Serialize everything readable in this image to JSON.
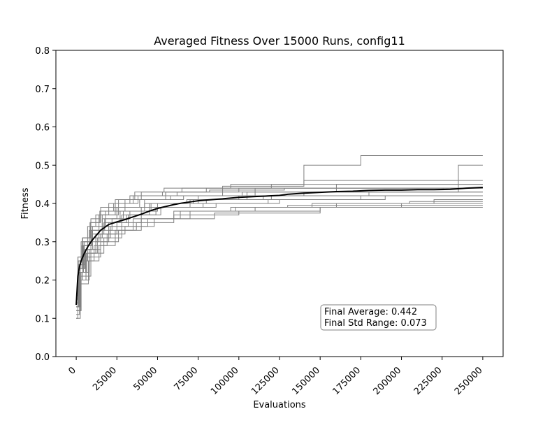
{
  "chart_data": {
    "type": "line",
    "title": "Averaged Fitness Over 15000 Runs, config11",
    "xlabel": "Evaluations",
    "ylabel": "Fitness",
    "xlim": [
      -12500,
      262500
    ],
    "ylim": [
      0.0,
      0.8
    ],
    "xticks": [
      0,
      25000,
      50000,
      75000,
      100000,
      125000,
      150000,
      175000,
      200000,
      225000,
      250000
    ],
    "xtick_labels": [
      "0",
      "25000",
      "50000",
      "75000",
      "100000",
      "125000",
      "150000",
      "175000",
      "200000",
      "225000",
      "250000"
    ],
    "yticks": [
      0.0,
      0.1,
      0.2,
      0.3,
      0.4,
      0.5,
      0.6,
      0.7,
      0.8
    ],
    "ytick_labels": [
      "0.0",
      "0.1",
      "0.2",
      "0.3",
      "0.4",
      "0.5",
      "0.6",
      "0.7",
      "0.8"
    ],
    "grid": false,
    "series": [
      {
        "role": "average",
        "color": "#000000",
        "x": [
          0,
          1000,
          2000,
          3000,
          5000,
          7500,
          10000,
          15000,
          20000,
          25000,
          30000,
          35000,
          40000,
          45000,
          50000,
          55000,
          60000,
          65000,
          70000,
          75000,
          80000,
          90000,
          100000,
          110000,
          120000,
          125000,
          130000,
          140000,
          150000,
          160000,
          170000,
          180000,
          190000,
          200000,
          210000,
          220000,
          230000,
          240000,
          250000
        ],
        "y": [
          0.135,
          0.21,
          0.235,
          0.25,
          0.27,
          0.29,
          0.305,
          0.33,
          0.345,
          0.352,
          0.358,
          0.365,
          0.372,
          0.38,
          0.387,
          0.392,
          0.397,
          0.401,
          0.404,
          0.407,
          0.409,
          0.412,
          0.416,
          0.418,
          0.42,
          0.421,
          0.424,
          0.427,
          0.429,
          0.431,
          0.432,
          0.434,
          0.435,
          0.435,
          0.436,
          0.436,
          0.437,
          0.44,
          0.442
        ]
      },
      {
        "role": "individual-runs",
        "color": "#808080",
        "runs": [
          {
            "x": [
              0,
              2000,
              6000,
              12000,
              20000,
              35000,
              60000,
              95000,
              130000,
              180000,
              250000
            ],
            "y": [
              0.13,
              0.2,
              0.27,
              0.3,
              0.33,
              0.36,
              0.38,
              0.39,
              0.395,
              0.395,
              0.395
            ]
          },
          {
            "x": [
              0,
              1500,
              5000,
              10000,
              18000,
              30000,
              55000,
              90000,
              140000,
              175000,
              250000
            ],
            "y": [
              0.14,
              0.24,
              0.3,
              0.34,
              0.38,
              0.41,
              0.43,
              0.445,
              0.5,
              0.525,
              0.525
            ]
          },
          {
            "x": [
              0,
              3000,
              8000,
              15000,
              25000,
              40000,
              70000,
              100000,
              140000,
              235000,
              250000
            ],
            "y": [
              0.12,
              0.22,
              0.28,
              0.32,
              0.35,
              0.39,
              0.41,
              0.42,
              0.43,
              0.5,
              0.5
            ]
          },
          {
            "x": [
              0,
              1000,
              4000,
              9000,
              16000,
              28000,
              45000,
              80000,
              120000,
              200000,
              250000
            ],
            "y": [
              0.1,
              0.2,
              0.26,
              0.31,
              0.34,
              0.37,
              0.4,
              0.41,
              0.42,
              0.42,
              0.42
            ]
          },
          {
            "x": [
              0,
              2500,
              7000,
              14000,
              22000,
              33000,
              50000,
              75000,
              110000,
              160000,
              250000
            ],
            "y": [
              0.16,
              0.25,
              0.3,
              0.33,
              0.36,
              0.38,
              0.4,
              0.42,
              0.44,
              0.45,
              0.45
            ]
          },
          {
            "x": [
              0,
              1200,
              3500,
              8000,
              14000,
              24000,
              38000,
              62000,
              100000,
              150000,
              250000
            ],
            "y": [
              0.13,
              0.23,
              0.29,
              0.33,
              0.37,
              0.4,
              0.42,
              0.43,
              0.44,
              0.44,
              0.44
            ]
          },
          {
            "x": [
              0,
              2000,
              6000,
              11000,
              19000,
              30000,
              48000,
              85000,
              150000,
              210000,
              250000
            ],
            "y": [
              0.11,
              0.2,
              0.25,
              0.29,
              0.32,
              0.34,
              0.36,
              0.375,
              0.39,
              0.39,
              0.39
            ]
          },
          {
            "x": [
              0,
              1800,
              5500,
              10000,
              17000,
              27000,
              42000,
              68000,
              105000,
              170000,
              250000
            ],
            "y": [
              0.14,
              0.23,
              0.28,
              0.32,
              0.35,
              0.38,
              0.4,
              0.41,
              0.43,
              0.43,
              0.43
            ]
          },
          {
            "x": [
              0,
              1000,
              4000,
              9000,
              15000,
              26000,
              40000,
              65000,
              95000,
              140000,
              250000
            ],
            "y": [
              0.15,
              0.26,
              0.31,
              0.36,
              0.39,
              0.41,
              0.43,
              0.44,
              0.45,
              0.46,
              0.46
            ]
          },
          {
            "x": [
              0,
              3000,
              9000,
              17000,
              28000,
              44000,
              70000,
              110000,
              160000,
              220000,
              250000
            ],
            "y": [
              0.12,
              0.21,
              0.27,
              0.31,
              0.34,
              0.36,
              0.38,
              0.39,
              0.4,
              0.41,
              0.41
            ]
          },
          {
            "x": [
              0,
              1500,
              4500,
              9500,
              16000,
              25000,
              39000,
              58000,
              90000,
              130000,
              250000
            ],
            "y": [
              0.14,
              0.22,
              0.29,
              0.33,
              0.36,
              0.39,
              0.41,
              0.42,
              0.43,
              0.43,
              0.43
            ]
          },
          {
            "x": [
              0,
              2200,
              6500,
              13000,
              21000,
              32000,
              52000,
              86000,
              125000,
              190000,
              250000
            ],
            "y": [
              0.13,
              0.22,
              0.27,
              0.31,
              0.34,
              0.37,
              0.39,
              0.4,
              0.41,
              0.42,
              0.42
            ]
          },
          {
            "x": [
              0,
              1000,
              3000,
              7000,
              12000,
              20000,
              33000,
              55000,
              80000,
              120000,
              250000
            ],
            "y": [
              0.15,
              0.25,
              0.3,
              0.34,
              0.37,
              0.4,
              0.42,
              0.43,
              0.44,
              0.45,
              0.45
            ]
          },
          {
            "x": [
              0,
              2500,
              7500,
              14000,
              24000,
              37000,
              60000,
              100000,
              150000,
              200000,
              250000
            ],
            "y": [
              0.1,
              0.19,
              0.25,
              0.29,
              0.33,
              0.35,
              0.37,
              0.38,
              0.39,
              0.4,
              0.4
            ]
          },
          {
            "x": [
              0,
              1600,
              5000,
              10000,
              17500,
              29000,
              46000,
              72000,
              115000,
              180000,
              250000
            ],
            "y": [
              0.13,
              0.23,
              0.29,
              0.33,
              0.36,
              0.38,
              0.4,
              0.41,
              0.42,
              0.43,
              0.43
            ]
          },
          {
            "x": [
              0,
              1100,
              3800,
              8500,
              15000,
              24000,
              36000,
              54000,
              85000,
              135000,
              250000
            ],
            "y": [
              0.16,
              0.26,
              0.31,
              0.35,
              0.38,
              0.41,
              0.43,
              0.44,
              0.44,
              0.44,
              0.44
            ]
          },
          {
            "x": [
              0,
              2800,
              8000,
              15000,
              26000,
              40000,
              64000,
              98000,
              145000,
              205000,
              250000
            ],
            "y": [
              0.12,
              0.2,
              0.26,
              0.3,
              0.33,
              0.36,
              0.38,
              0.39,
              0.4,
              0.405,
              0.405
            ]
          },
          {
            "x": [
              0,
              1400,
              4200,
              9000,
              16000,
              26000,
              42000,
              66000,
              102000,
              160000,
              250000
            ],
            "y": [
              0.14,
              0.24,
              0.3,
              0.34,
              0.37,
              0.39,
              0.41,
              0.42,
              0.43,
              0.44,
              0.44
            ]
          },
          {
            "x": [
              0,
              2000,
              5800,
              12000,
              20000,
              31000,
              49000,
              78000,
              118000,
              175000,
              250000
            ],
            "y": [
              0.13,
              0.22,
              0.28,
              0.32,
              0.35,
              0.37,
              0.39,
              0.4,
              0.41,
              0.42,
              0.42
            ]
          },
          {
            "x": [
              0,
              1300,
              4000,
              8500,
              14500,
              23000,
              35000,
              53000,
              82000,
              128000,
              250000
            ],
            "y": [
              0.15,
              0.25,
              0.31,
              0.35,
              0.38,
              0.4,
              0.42,
              0.43,
              0.435,
              0.44,
              0.44
            ]
          }
        ]
      }
    ],
    "annotation": {
      "lines": [
        "Final Average: 0.442",
        "Final Std Range: 0.073"
      ],
      "placement": "lower-right"
    }
  }
}
